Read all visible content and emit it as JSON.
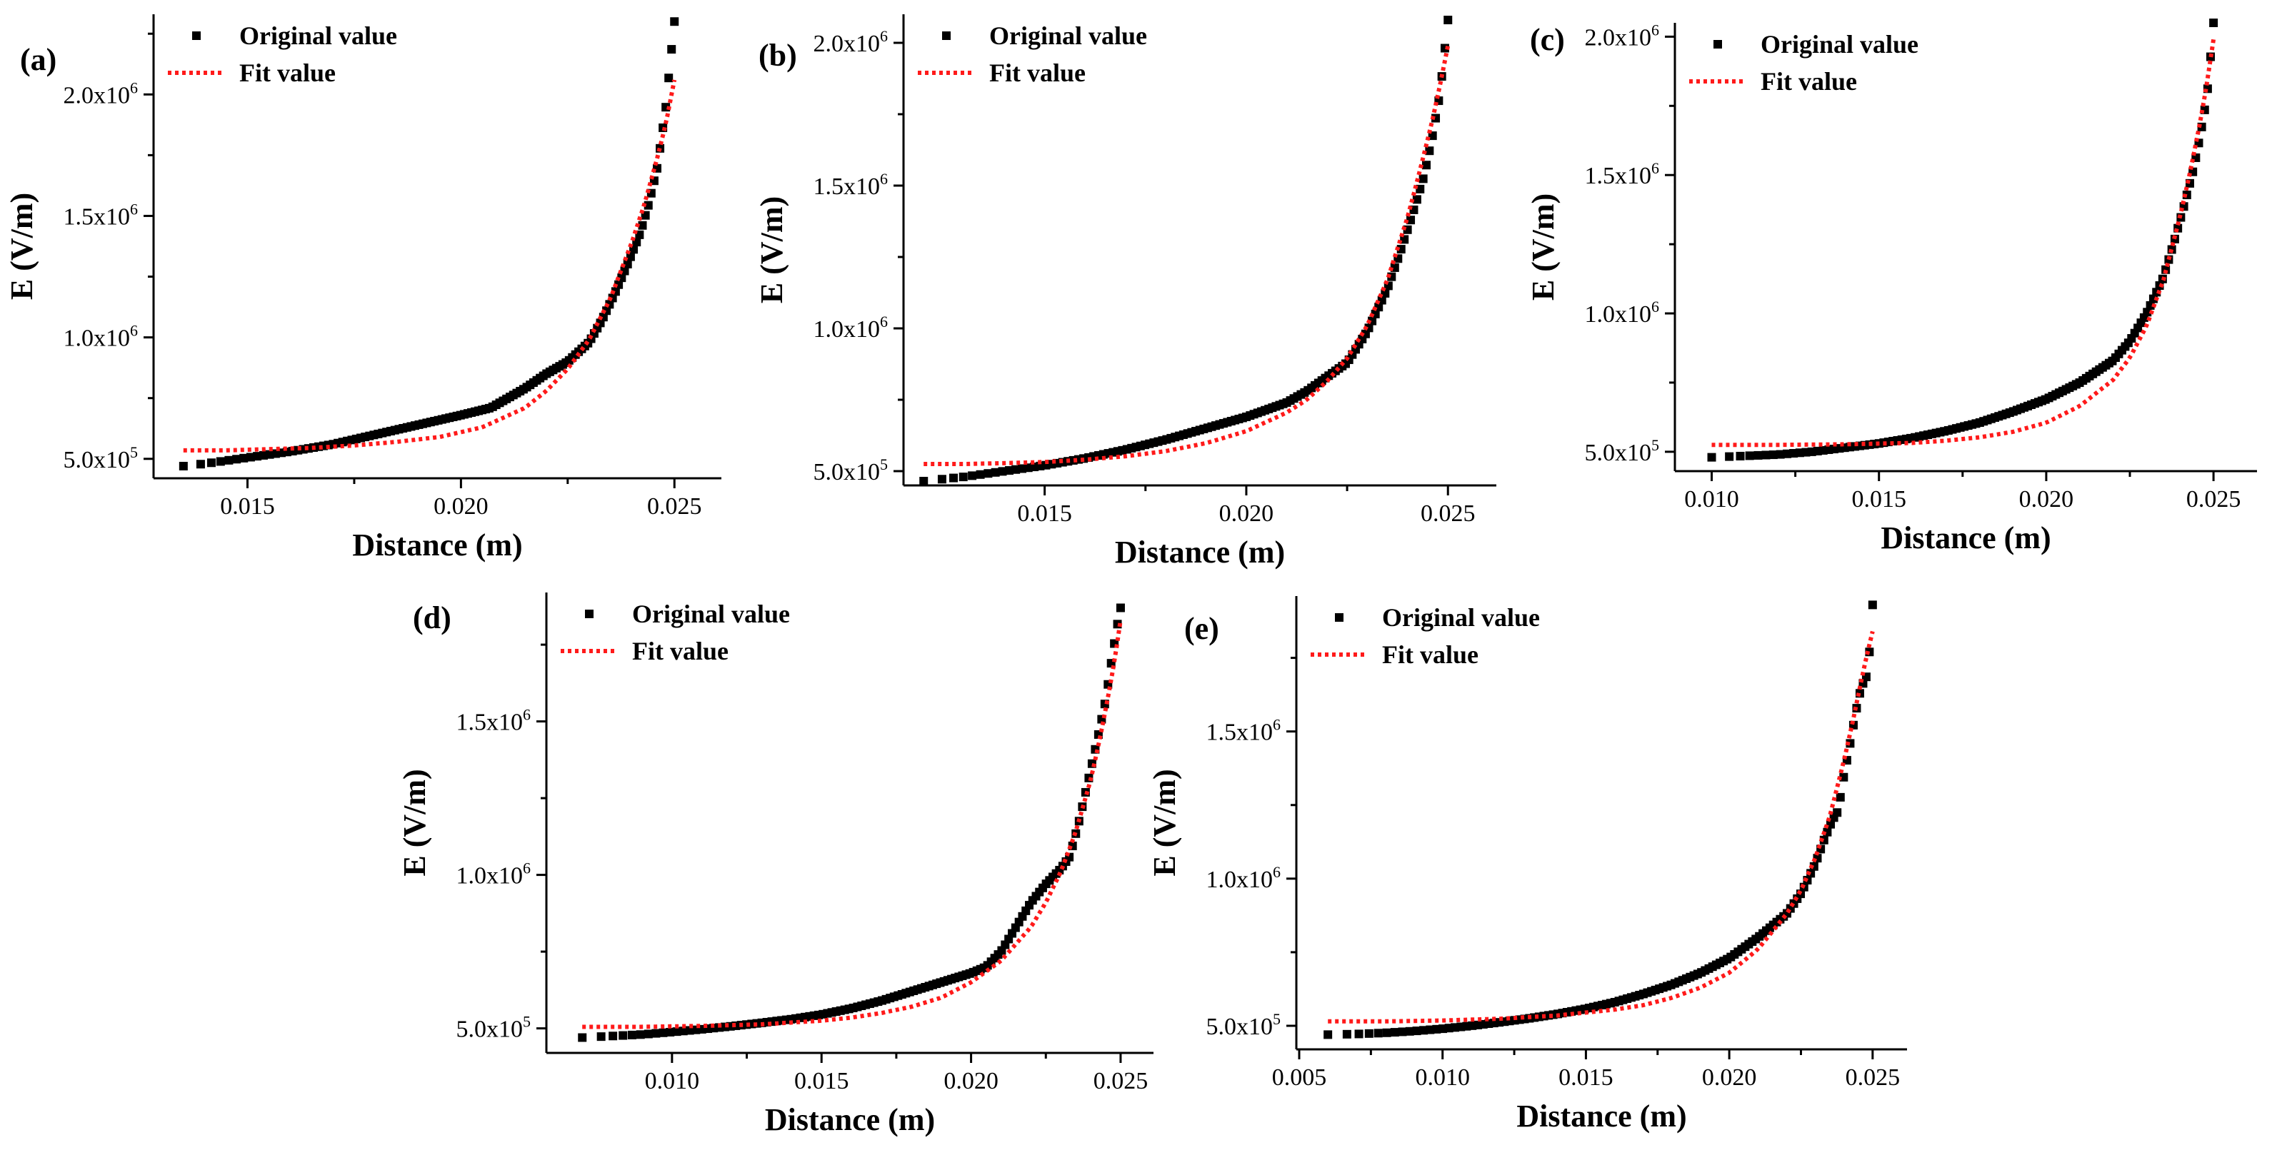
{
  "figure": {
    "legend": {
      "original": "Original value",
      "fit": "Fit value"
    },
    "colors": {
      "original": "#000000",
      "fit": "#ff1a1a"
    }
  },
  "chart_data": [
    {
      "id": "a",
      "type": "scatter",
      "panel_label": "(a)",
      "xlabel": "Distance (m)",
      "ylabel": "E (V/m)",
      "xlim": [
        0.0128,
        0.0261
      ],
      "ylim": [
        420000,
        2330000
      ],
      "xticks": [
        0.015,
        0.02,
        0.025
      ],
      "xtick_labels": [
        "0.015",
        "0.020",
        "0.025"
      ],
      "yticks": [
        500000,
        1000000,
        1500000,
        2000000
      ],
      "ytick_mantissas": [
        "5.0x10",
        "1.0x10",
        "1.5x10",
        "2.0x10"
      ],
      "ytick_exponents": [
        "5",
        "6",
        "6",
        "6"
      ],
      "series": [
        {
          "name": "Original value",
          "style": "scatter",
          "x": [
            0.0135,
            0.014,
            0.015,
            0.016,
            0.017,
            0.018,
            0.019,
            0.02,
            0.0207,
            0.021,
            0.0215,
            0.022,
            0.0225,
            0.023,
            0.0233,
            0.0236,
            0.0239,
            0.0242,
            0.0244,
            0.0246,
            0.0248,
            0.0249,
            0.025
          ],
          "y": [
            470000,
            480000,
            505000,
            530000,
            560000,
            600000,
            640000,
            680000,
            710000,
            740000,
            790000,
            850000,
            900000,
            980000,
            1070000,
            1180000,
            1300000,
            1430000,
            1550000,
            1700000,
            1950000,
            2130000,
            2300000
          ]
        },
        {
          "name": "Fit value",
          "style": "dotted",
          "x": [
            0.0135,
            0.0145,
            0.0155,
            0.0165,
            0.0175,
            0.0185,
            0.0195,
            0.0205,
            0.0215,
            0.022,
            0.0225,
            0.023,
            0.0235,
            0.024,
            0.0243,
            0.0246,
            0.0248,
            0.025
          ],
          "y": [
            535000,
            535000,
            540000,
            545000,
            555000,
            570000,
            590000,
            630000,
            710000,
            780000,
            870000,
            990000,
            1160000,
            1390000,
            1550000,
            1740000,
            1880000,
            2060000
          ]
        }
      ]
    },
    {
      "id": "b",
      "type": "scatter",
      "panel_label": "(b)",
      "xlabel": "Distance (m)",
      "ylabel": "E (V/m)",
      "xlim": [
        0.0115,
        0.0262
      ],
      "ylim": [
        450000,
        2100000
      ],
      "xticks": [
        0.015,
        0.02,
        0.025
      ],
      "xtick_labels": [
        "0.015",
        "0.020",
        "0.025"
      ],
      "yticks": [
        500000,
        1000000,
        1500000,
        2000000
      ],
      "ytick_mantissas": [
        "5.0x10",
        "1.0x10",
        "1.5x10",
        "2.0x10"
      ],
      "ytick_exponents": [
        "5",
        "6",
        "6",
        "6"
      ],
      "series": [
        {
          "name": "Original value",
          "style": "scatter",
          "x": [
            0.012,
            0.013,
            0.014,
            0.015,
            0.016,
            0.017,
            0.018,
            0.019,
            0.02,
            0.021,
            0.0215,
            0.022,
            0.0225,
            0.023,
            0.0235,
            0.0238,
            0.0241,
            0.0244,
            0.0246,
            0.0248,
            0.0249,
            0.025
          ],
          "y": [
            465000,
            480000,
            500000,
            520000,
            545000,
            575000,
            610000,
            650000,
            690000,
            740000,
            780000,
            830000,
            880000,
            990000,
            1140000,
            1260000,
            1390000,
            1530000,
            1660000,
            1820000,
            1950000,
            2080000
          ]
        },
        {
          "name": "Fit value",
          "style": "dotted",
          "x": [
            0.012,
            0.013,
            0.014,
            0.015,
            0.016,
            0.017,
            0.018,
            0.019,
            0.02,
            0.021,
            0.0215,
            0.022,
            0.0225,
            0.023,
            0.0235,
            0.024,
            0.0243,
            0.0246,
            0.0248,
            0.025
          ],
          "y": [
            525000,
            525000,
            528000,
            532000,
            540000,
            552000,
            570000,
            598000,
            640000,
            705000,
            750000,
            815000,
            895000,
            1010000,
            1170000,
            1390000,
            1550000,
            1720000,
            1850000,
            1990000
          ]
        }
      ]
    },
    {
      "id": "c",
      "type": "scatter",
      "panel_label": "(c)",
      "xlabel": "Distance (m)",
      "ylabel": "E (V/m)",
      "xlim": [
        0.0089,
        0.0263
      ],
      "ylim": [
        430000,
        2050000
      ],
      "xticks": [
        0.01,
        0.015,
        0.02,
        0.025
      ],
      "xtick_labels": [
        "0.010",
        "0.015",
        "0.020",
        "0.025"
      ],
      "yticks": [
        500000,
        1000000,
        1500000,
        2000000
      ],
      "ytick_mantissas": [
        "5.0x10",
        "1.0x10",
        "1.5x10",
        "2.0x10"
      ],
      "ytick_exponents": [
        "5",
        "6",
        "6",
        "6"
      ],
      "series": [
        {
          "name": "Original value",
          "style": "scatter",
          "x": [
            0.01,
            0.011,
            0.012,
            0.013,
            0.014,
            0.015,
            0.016,
            0.017,
            0.018,
            0.019,
            0.02,
            0.021,
            0.022,
            0.0225,
            0.023,
            0.0235,
            0.0238,
            0.0241,
            0.0244,
            0.0246,
            0.0248,
            0.0249,
            0.025
          ],
          "y": [
            480000,
            485000,
            490000,
            500000,
            515000,
            530000,
            550000,
            575000,
            605000,
            645000,
            690000,
            750000,
            830000,
            900000,
            1000000,
            1130000,
            1250000,
            1380000,
            1520000,
            1640000,
            1780000,
            1910000,
            2050000
          ]
        },
        {
          "name": "Fit value",
          "style": "dotted",
          "x": [
            0.01,
            0.012,
            0.014,
            0.016,
            0.017,
            0.018,
            0.019,
            0.02,
            0.021,
            0.022,
            0.0225,
            0.023,
            0.0235,
            0.024,
            0.0243,
            0.0246,
            0.0248,
            0.025
          ],
          "y": [
            525000,
            525000,
            527000,
            532000,
            540000,
            552000,
            572000,
            605000,
            665000,
            760000,
            840000,
            955000,
            1120000,
            1350000,
            1510000,
            1690000,
            1830000,
            1990000
          ]
        }
      ]
    },
    {
      "id": "d",
      "type": "scatter",
      "panel_label": "(d)",
      "xlabel": "Distance (m)",
      "ylabel": "E (V/m)",
      "xlim": [
        0.0058,
        0.0261
      ],
      "ylim": [
        420000,
        1920000
      ],
      "xticks": [
        0.01,
        0.015,
        0.02,
        0.025
      ],
      "xtick_labels": [
        "0.010",
        "0.015",
        "0.020",
        "0.025"
      ],
      "yticks": [
        500000,
        1000000,
        1500000
      ],
      "ytick_mantissas": [
        "5.0x10",
        "1.0x10",
        "1.5x10"
      ],
      "ytick_exponents": [
        "5",
        "6",
        "6"
      ],
      "series": [
        {
          "name": "Original value",
          "style": "scatter",
          "x": [
            0.007,
            0.008,
            0.009,
            0.01,
            0.011,
            0.012,
            0.013,
            0.014,
            0.015,
            0.016,
            0.017,
            0.018,
            0.019,
            0.02,
            0.0205,
            0.021,
            0.0215,
            0.022,
            0.0225,
            0.023,
            0.0233,
            0.0236,
            0.0239,
            0.0242,
            0.0245,
            0.0247,
            0.0249,
            0.025
          ],
          "y": [
            470000,
            475000,
            480000,
            488000,
            497000,
            507000,
            518000,
            530000,
            545000,
            565000,
            590000,
            620000,
            650000,
            680000,
            700000,
            750000,
            830000,
            910000,
            970000,
            1020000,
            1060000,
            1170000,
            1300000,
            1430000,
            1570000,
            1700000,
            1820000,
            1870000
          ]
        },
        {
          "name": "Fit value",
          "style": "dotted",
          "x": [
            0.007,
            0.009,
            0.011,
            0.013,
            0.015,
            0.016,
            0.017,
            0.018,
            0.019,
            0.02,
            0.021,
            0.022,
            0.0225,
            0.023,
            0.0235,
            0.024,
            0.0243,
            0.0246,
            0.0248,
            0.025
          ],
          "y": [
            505000,
            505000,
            508000,
            513000,
            525000,
            535000,
            550000,
            570000,
            600000,
            650000,
            720000,
            830000,
            910000,
            1010000,
            1140000,
            1310000,
            1440000,
            1590000,
            1700000,
            1830000
          ]
        }
      ]
    },
    {
      "id": "e",
      "type": "scatter",
      "panel_label": "(e)",
      "xlabel": "Distance (m)",
      "ylabel": "E (V/m)",
      "xlim": [
        0.0049,
        0.0262
      ],
      "ylim": [
        420000,
        1960000
      ],
      "xticks": [
        0.005,
        0.01,
        0.015,
        0.02,
        0.025
      ],
      "xtick_labels": [
        "0.005",
        "0.010",
        "0.015",
        "0.020",
        "0.025"
      ],
      "yticks": [
        500000,
        1000000,
        1500000
      ],
      "ytick_mantissas": [
        "5.0x10",
        "1.0x10",
        "1.5x10"
      ],
      "ytick_exponents": [
        "5",
        "6",
        "6"
      ],
      "series": [
        {
          "name": "Original value",
          "style": "scatter",
          "x": [
            0.006,
            0.007,
            0.008,
            0.009,
            0.01,
            0.011,
            0.012,
            0.013,
            0.014,
            0.015,
            0.016,
            0.017,
            0.018,
            0.019,
            0.02,
            0.021,
            0.022,
            0.0225,
            0.023,
            0.0233,
            0.0236,
            0.0238,
            0.024,
            0.0242,
            0.0244,
            0.0246,
            0.0248,
            0.0249,
            0.025
          ],
          "y": [
            470000,
            472000,
            476000,
            482000,
            490000,
            500000,
            512000,
            525000,
            540000,
            558000,
            580000,
            608000,
            640000,
            680000,
            730000,
            800000,
            880000,
            950000,
            1050000,
            1130000,
            1200000,
            1230000,
            1350000,
            1450000,
            1560000,
            1650000,
            1690000,
            1780000,
            1930000
          ]
        },
        {
          "name": "Fit value",
          "style": "dotted",
          "x": [
            0.006,
            0.008,
            0.01,
            0.012,
            0.014,
            0.016,
            0.017,
            0.018,
            0.019,
            0.02,
            0.021,
            0.022,
            0.0225,
            0.023,
            0.0235,
            0.024,
            0.0243,
            0.0246,
            0.0248,
            0.025
          ],
          "y": [
            515000,
            515000,
            518000,
            524000,
            535000,
            555000,
            570000,
            595000,
            630000,
            680000,
            760000,
            880000,
            960000,
            1070000,
            1210000,
            1400000,
            1530000,
            1670000,
            1760000,
            1840000
          ]
        }
      ]
    }
  ]
}
